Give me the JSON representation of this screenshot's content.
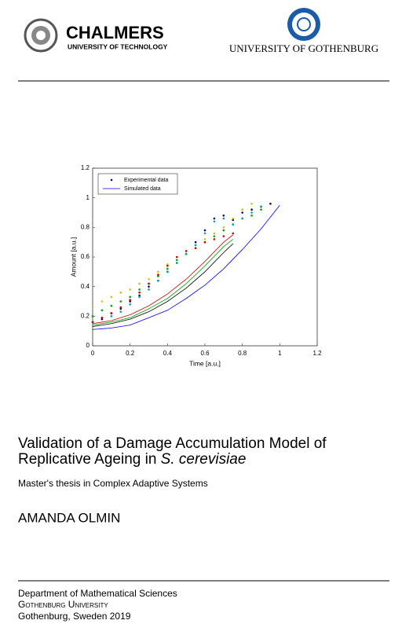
{
  "header": {
    "left_logo_name": "CHALMERS",
    "left_logo_sub": "UNIVERSITY OF TECHNOLOGY",
    "right_logo_name": "UNIVERSITY OF GOTHENBURG"
  },
  "figure": {
    "chart_data": {
      "type": "scatter",
      "xlabel": "Time [a.u.]",
      "ylabel": "Amount [a.u.]",
      "xlim": [
        0,
        1.2
      ],
      "ylim": [
        0,
        1.2
      ],
      "xticks": [
        0,
        0.2,
        0.4,
        0.6,
        0.8,
        1,
        1.2
      ],
      "yticks": [
        0,
        0.2,
        0.4,
        0.6,
        0.8,
        1,
        1.2
      ],
      "legend": "upper left",
      "series": [
        {
          "name": "Experimental data",
          "color": "#000080",
          "mode": "markers",
          "x": [
            0,
            0.05,
            0.1,
            0.15,
            0.2,
            0.25,
            0.3,
            0.35,
            0.4,
            0.45,
            0.5,
            0.55,
            0.6,
            0.65,
            0.7,
            0.75,
            0.8,
            0.85,
            0.9,
            0.95
          ],
          "values": [
            0.16,
            0.18,
            0.22,
            0.25,
            0.3,
            0.34,
            0.4,
            0.44,
            0.5,
            0.56,
            0.62,
            0.7,
            0.78,
            0.86,
            0.88,
            0.85,
            0.9,
            0.92,
            0.94,
            0.96
          ]
        },
        {
          "name": "Simulated data",
          "color": "#0000ff",
          "mode": "line",
          "x": [
            0,
            0.1,
            0.2,
            0.3,
            0.4,
            0.5,
            0.6,
            0.7,
            0.8,
            0.9,
            1
          ],
          "values": [
            0.11,
            0.12,
            0.14,
            0.19,
            0.24,
            0.32,
            0.41,
            0.52,
            0.65,
            0.79,
            0.95
          ]
        },
        {
          "color": "#00a000",
          "mode": "markers",
          "x": [
            0,
            0.05,
            0.1,
            0.15,
            0.2,
            0.25,
            0.3,
            0.35,
            0.4,
            0.45,
            0.5,
            0.55,
            0.6,
            0.65,
            0.7,
            0.75,
            0.8,
            0.85,
            0.9
          ],
          "values": [
            0.2,
            0.24,
            0.27,
            0.3,
            0.33,
            0.38,
            0.42,
            0.47,
            0.52,
            0.58,
            0.62,
            0.66,
            0.7,
            0.74,
            0.78,
            0.82,
            0.86,
            0.88,
            0.92
          ]
        },
        {
          "color": "#c8c800",
          "mode": "markers",
          "x": [
            0,
            0.05,
            0.1,
            0.15,
            0.2,
            0.25,
            0.3,
            0.35,
            0.4,
            0.45,
            0.5,
            0.55,
            0.6,
            0.65,
            0.7,
            0.75,
            0.8,
            0.85
          ],
          "values": [
            0.26,
            0.3,
            0.33,
            0.36,
            0.38,
            0.42,
            0.45,
            0.5,
            0.55,
            0.6,
            0.64,
            0.68,
            0.72,
            0.76,
            0.8,
            0.86,
            0.92,
            0.96
          ]
        },
        {
          "color": "#d00000",
          "mode": "markers",
          "x": [
            0,
            0.05,
            0.1,
            0.15,
            0.2,
            0.25,
            0.3,
            0.35,
            0.4,
            0.45,
            0.5,
            0.55,
            0.6,
            0.65,
            0.7,
            0.75
          ],
          "values": [
            0.16,
            0.19,
            0.22,
            0.26,
            0.31,
            0.36,
            0.42,
            0.48,
            0.54,
            0.6,
            0.64,
            0.66,
            0.7,
            0.72,
            0.74,
            0.76
          ]
        },
        {
          "color": "#00a0a0",
          "mode": "markers",
          "x": [
            0.1,
            0.15,
            0.2,
            0.25,
            0.3,
            0.35,
            0.4,
            0.45,
            0.5,
            0.55,
            0.6,
            0.65,
            0.7,
            0.75,
            0.8,
            0.85,
            0.9
          ],
          "values": [
            0.2,
            0.23,
            0.28,
            0.33,
            0.38,
            0.44,
            0.5,
            0.56,
            0.62,
            0.68,
            0.76,
            0.84,
            0.86,
            0.82,
            0.86,
            0.9,
            0.94
          ]
        },
        {
          "color": "#d00000",
          "mode": "line",
          "x": [
            0,
            0.1,
            0.2,
            0.3,
            0.4,
            0.5,
            0.6,
            0.7,
            0.75
          ],
          "values": [
            0.15,
            0.17,
            0.21,
            0.27,
            0.35,
            0.45,
            0.57,
            0.7,
            0.75
          ]
        },
        {
          "color": "#00a000",
          "mode": "line",
          "x": [
            0,
            0.1,
            0.2,
            0.3,
            0.4,
            0.5,
            0.6,
            0.7,
            0.75
          ],
          "values": [
            0.14,
            0.16,
            0.19,
            0.25,
            0.32,
            0.42,
            0.54,
            0.67,
            0.72
          ]
        },
        {
          "color": "#000000",
          "mode": "line",
          "x": [
            0,
            0.1,
            0.2,
            0.3,
            0.4,
            0.5,
            0.6,
            0.7,
            0.75
          ],
          "values": [
            0.13,
            0.15,
            0.18,
            0.23,
            0.3,
            0.39,
            0.5,
            0.63,
            0.69
          ]
        }
      ]
    }
  },
  "title": {
    "line1": "Validation of a Damage Accumulation Model of",
    "line2": "Replicative Ageing in",
    "species": "S. cerevisiae"
  },
  "subtitle": "Master's thesis in Complex Adaptive Systems",
  "author": "AMANDA OLMIN",
  "footer": {
    "department": "Department of Mathematical Sciences",
    "university": "Gothenburg University",
    "place": "Gothenburg, Sweden 2019"
  }
}
